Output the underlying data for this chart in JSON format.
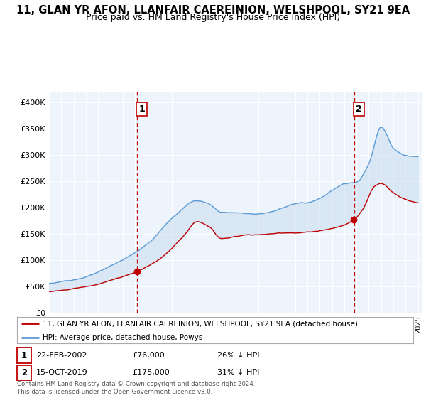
{
  "title": "11, GLAN YR AFON, LLANFAIR CAEREINION, WELSHPOOL, SY21 9EA",
  "subtitle": "Price paid vs. HM Land Registry's House Price Index (HPI)",
  "ylabel_ticks": [
    "£0",
    "£50K",
    "£100K",
    "£150K",
    "£200K",
    "£250K",
    "£300K",
    "£350K",
    "£400K"
  ],
  "ytick_values": [
    0,
    50000,
    100000,
    150000,
    200000,
    250000,
    300000,
    350000,
    400000
  ],
  "ylim": [
    0,
    420000
  ],
  "x_start_year": 1995,
  "x_end_year": 2025,
  "vline1_year": 2002.13,
  "vline2_year": 2019.79,
  "sale1_label": "1",
  "sale1_date": "22-FEB-2002",
  "sale1_price": "£76,000",
  "sale1_hpi": "26% ↓ HPI",
  "sale1_price_val": 76000,
  "sale1_year": 2002.13,
  "sale2_label": "2",
  "sale2_date": "15-OCT-2019",
  "sale2_price": "£175,000",
  "sale2_hpi": "31% ↓ HPI",
  "sale2_price_val": 175000,
  "sale2_year": 2019.79,
  "legend_line1": "11, GLAN YR AFON, LLANFAIR CAEREINION, WELSHPOOL, SY21 9EA (detached house)",
  "legend_line2": "HPI: Average price, detached house, Powys",
  "footnote": "Contains HM Land Registry data © Crown copyright and database right 2024.\nThis data is licensed under the Open Government Licence v3.0.",
  "line_color_hpi": "#5B9BD5",
  "line_color_price": "#C00000",
  "fill_color": "#DDEEFF",
  "vline_color": "#C00000",
  "background_color": "#ffffff",
  "grid_color": "#cccccc",
  "title_fontsize": 10.5,
  "subtitle_fontsize": 9
}
